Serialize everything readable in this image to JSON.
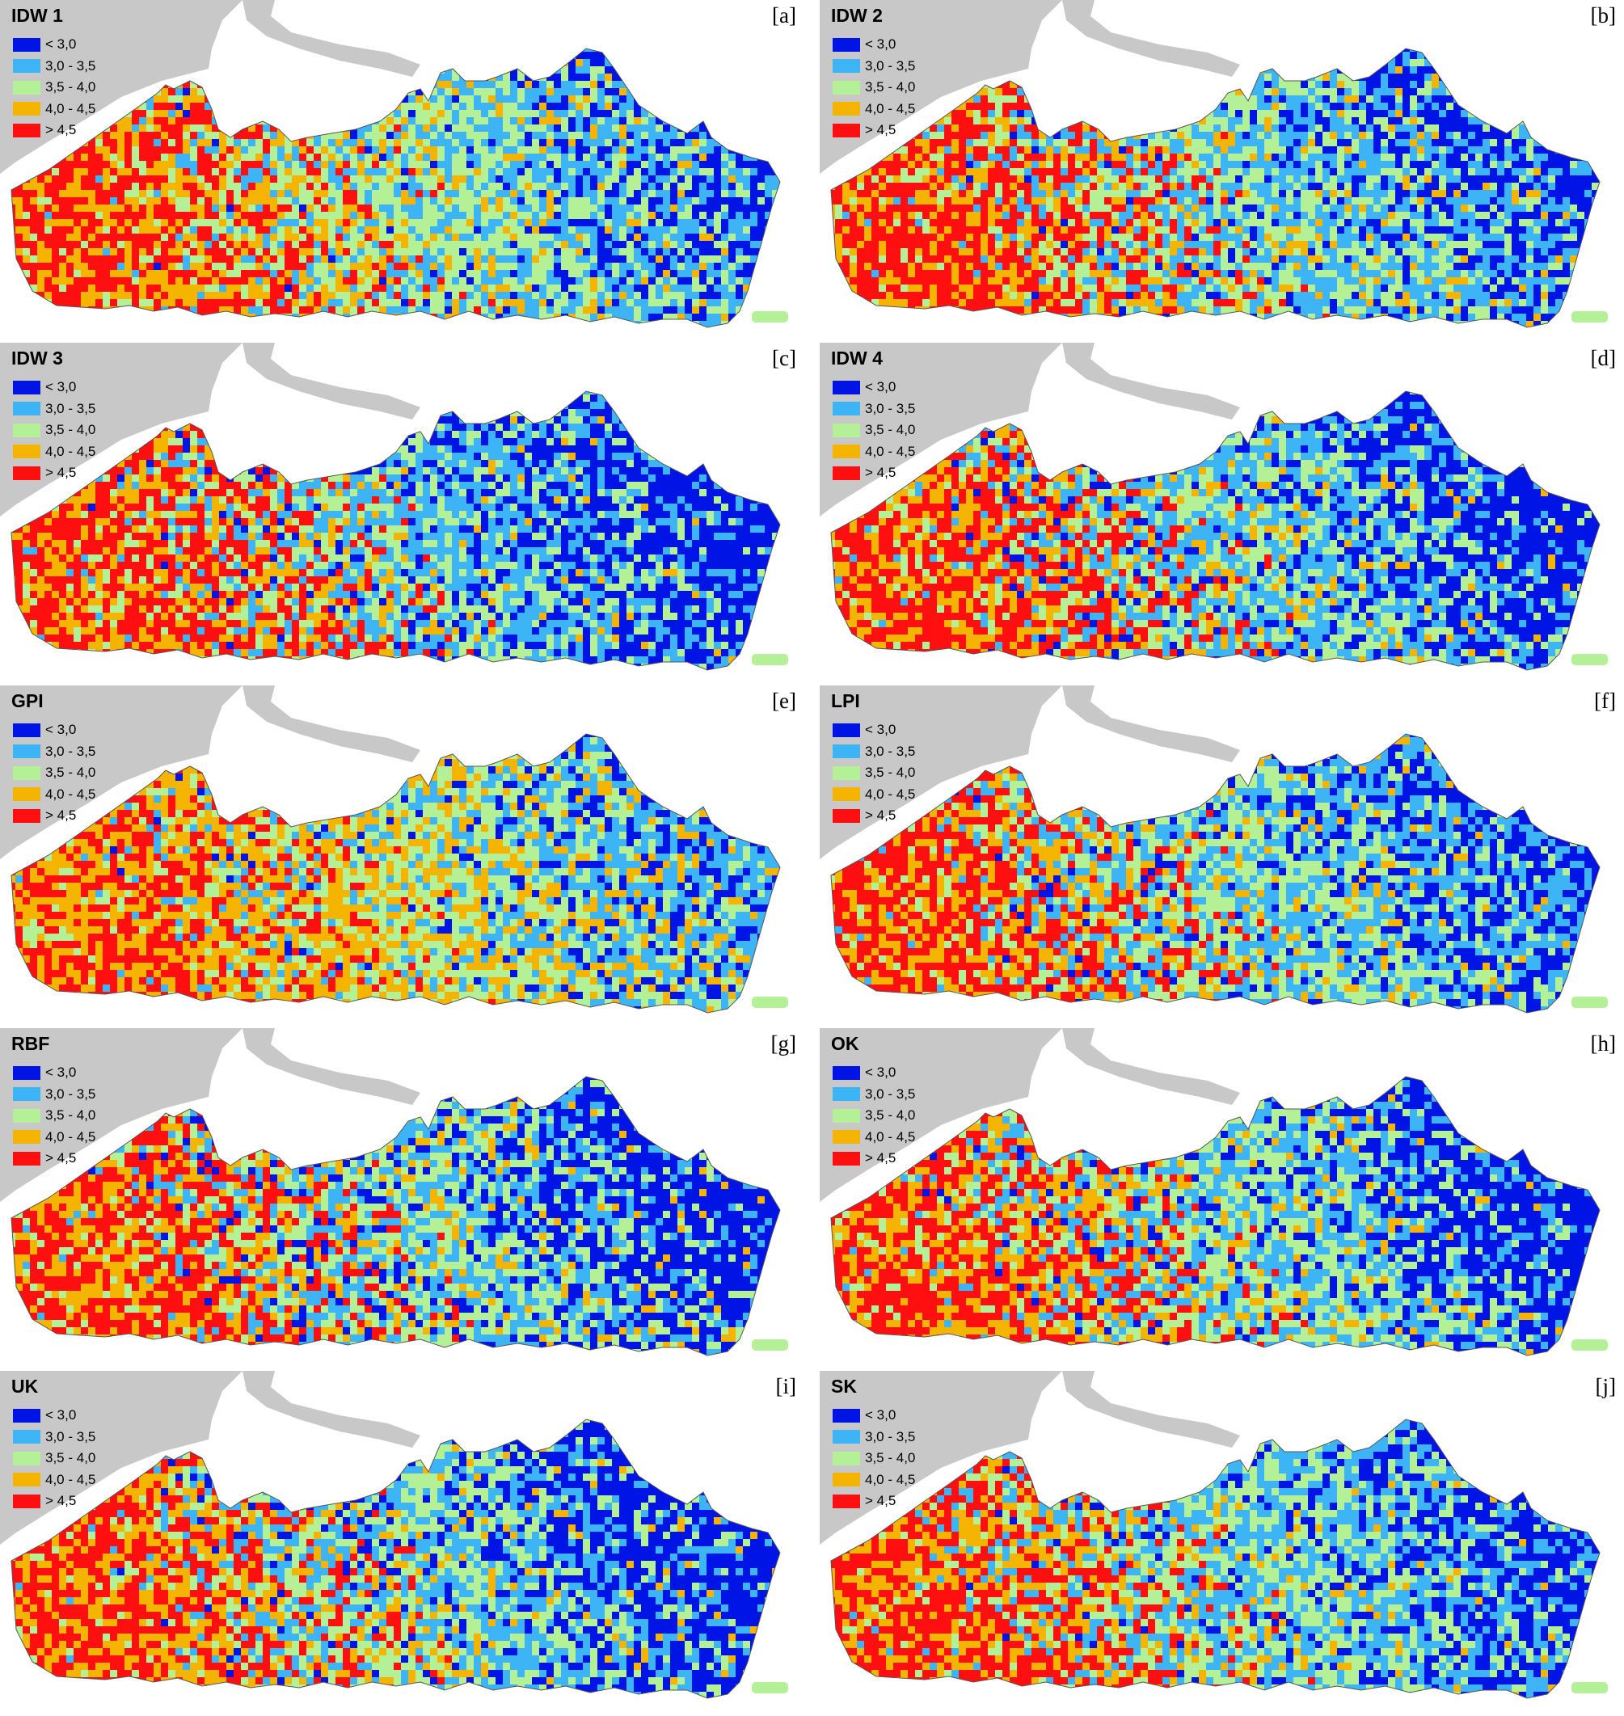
{
  "legend": {
    "classes": [
      {
        "label": "< 3,0",
        "color": "#0014e6"
      },
      {
        "label": "3,0 - 3,5",
        "color": "#3cb4f5"
      },
      {
        "label": "3,5 - 4,0",
        "color": "#b4f096"
      },
      {
        "label": "4,0 - 4,5",
        "color": "#f5b400"
      },
      {
        "label": "> 4,5",
        "color": "#ff0f0f"
      }
    ]
  },
  "colors": {
    "background_land": "#c8c8c8",
    "water": "#ffffff",
    "outline": "#555555"
  },
  "panels": [
    {
      "title": "IDW 1",
      "letter": "[a]"
    },
    {
      "title": "IDW 2",
      "letter": "[b]"
    },
    {
      "title": "IDW 3",
      "letter": "[c]"
    },
    {
      "title": "IDW 4",
      "letter": "[d]"
    },
    {
      "title": "GPI",
      "letter": "[e]"
    },
    {
      "title": "LPI",
      "letter": "[f]"
    },
    {
      "title": "RBF",
      "letter": "[g]"
    },
    {
      "title": "OK",
      "letter": "[h]"
    },
    {
      "title": "UK",
      "letter": "[i]"
    },
    {
      "title": "SK",
      "letter": "[j]"
    }
  ]
}
